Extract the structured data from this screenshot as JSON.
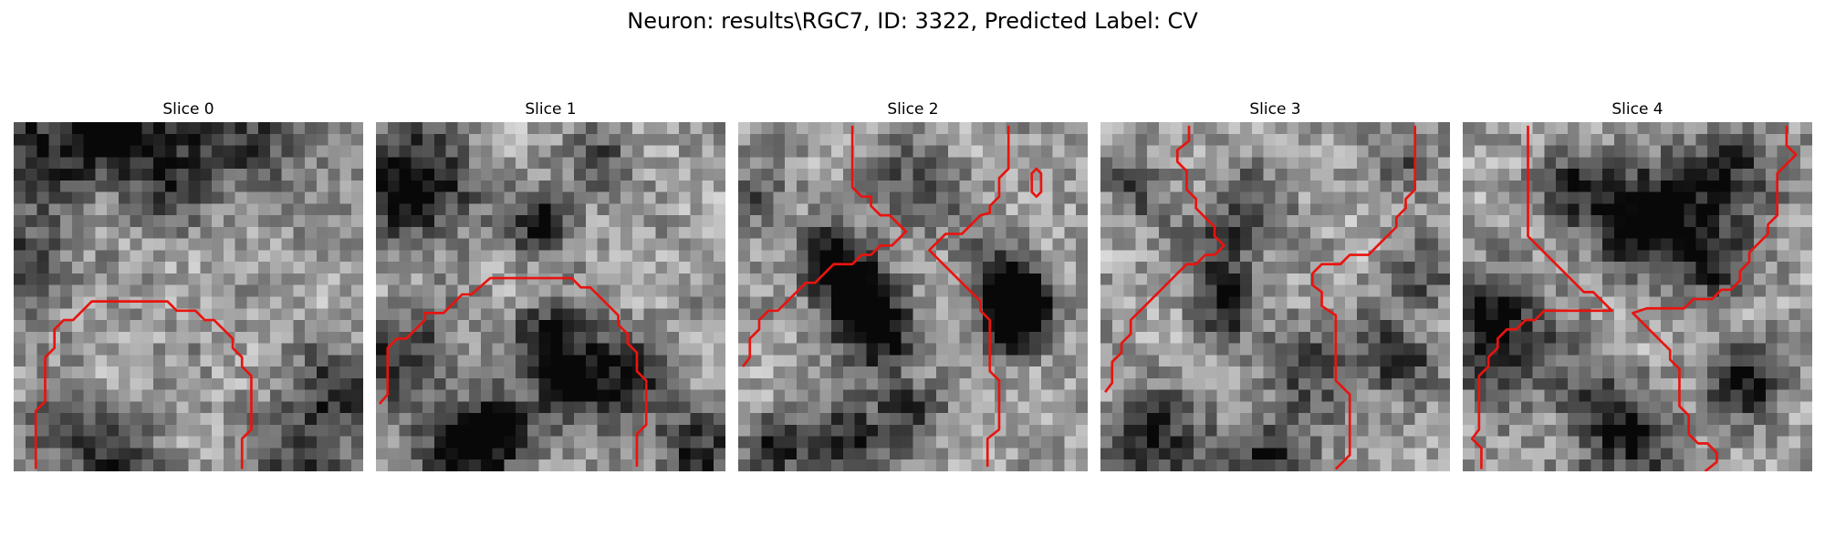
{
  "figure": {
    "title": "Neuron: results\\RGC7, ID: 3322, Predicted Label: CV"
  },
  "colors": {
    "contour": "#e8140f",
    "background": "#ffffff"
  },
  "grid_size": 30,
  "panels": [
    {
      "title": "Slice 0"
    },
    {
      "title": "Slice 1"
    },
    {
      "title": "Slice 2"
    },
    {
      "title": "Slice 3"
    },
    {
      "title": "Slice 4"
    }
  ]
}
